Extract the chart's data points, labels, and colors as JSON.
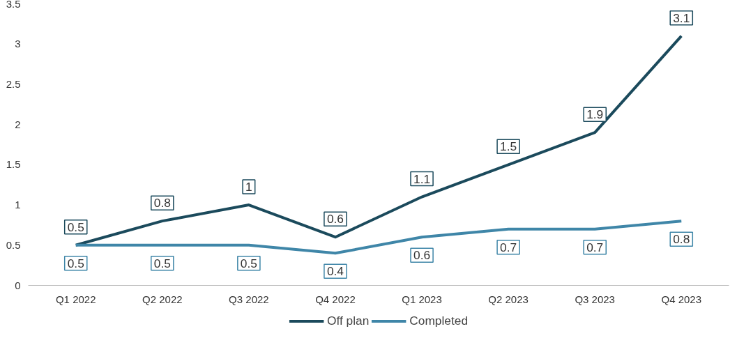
{
  "chart_data": {
    "type": "line",
    "categories": [
      "Q1 2022",
      "Q2 2022",
      "Q3 2022",
      "Q4 2022",
      "Q1 2023",
      "Q2 2023",
      "Q3 2023",
      "Q4 2023"
    ],
    "series": [
      {
        "name": "Off plan",
        "color": "#1b4a5c",
        "values": [
          0.5,
          0.8,
          1,
          0.6,
          1.1,
          1.5,
          1.9,
          3.1
        ]
      },
      {
        "name": "Completed",
        "color": "#3f86a8",
        "values": [
          0.5,
          0.5,
          0.5,
          0.4,
          0.6,
          0.7,
          0.7,
          0.8
        ]
      }
    ],
    "ylim": [
      0,
      3.5
    ],
    "yticks": [
      0,
      0.5,
      1,
      1.5,
      2,
      2.5,
      3,
      3.5
    ],
    "grid": false,
    "legend": "bottom",
    "data_labels": true,
    "marker": "none",
    "line_style": "solid"
  }
}
